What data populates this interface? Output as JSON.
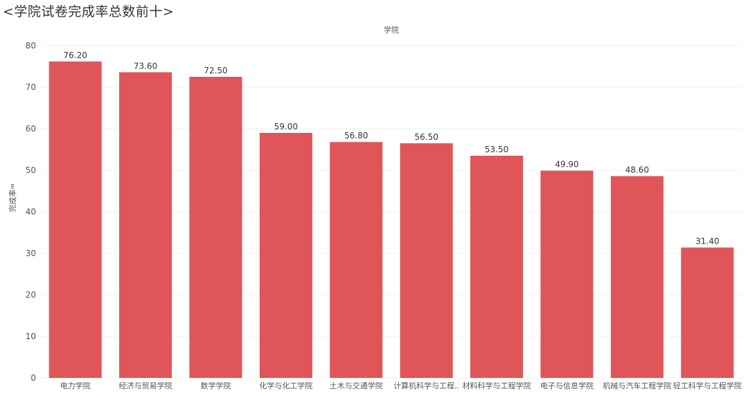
{
  "page": {
    "title": "<学院试卷完成率总数前十>"
  },
  "colors": {
    "bar": "#e05558",
    "grid": "#f0f0f0",
    "text": "#333333"
  },
  "chart_data": {
    "type": "bar",
    "title": "<学院试卷完成率总数前十>",
    "xlabel": "学院",
    "ylabel": "完成率",
    "ylim": [
      0,
      80
    ],
    "yticks": [
      0,
      10,
      20,
      30,
      40,
      50,
      60,
      70,
      80
    ],
    "grid": "horizontal",
    "categories": [
      "电力学院",
      "经济与贸易学院",
      "数学学院",
      "化学与化工学院",
      "土木与交通学院",
      "计算机科学与工程..",
      "材料科学与工程学院",
      "电子与信息学院",
      "机械与汽车工程学院",
      "轻工科学与工程学院"
    ],
    "values": [
      76.2,
      73.6,
      72.5,
      59.0,
      56.8,
      56.5,
      53.5,
      49.9,
      48.6,
      31.4
    ],
    "value_labels": [
      "76.20",
      "73.60",
      "72.50",
      "59.00",
      "56.80",
      "56.50",
      "53.50",
      "49.90",
      "48.60",
      "31.40"
    ]
  }
}
